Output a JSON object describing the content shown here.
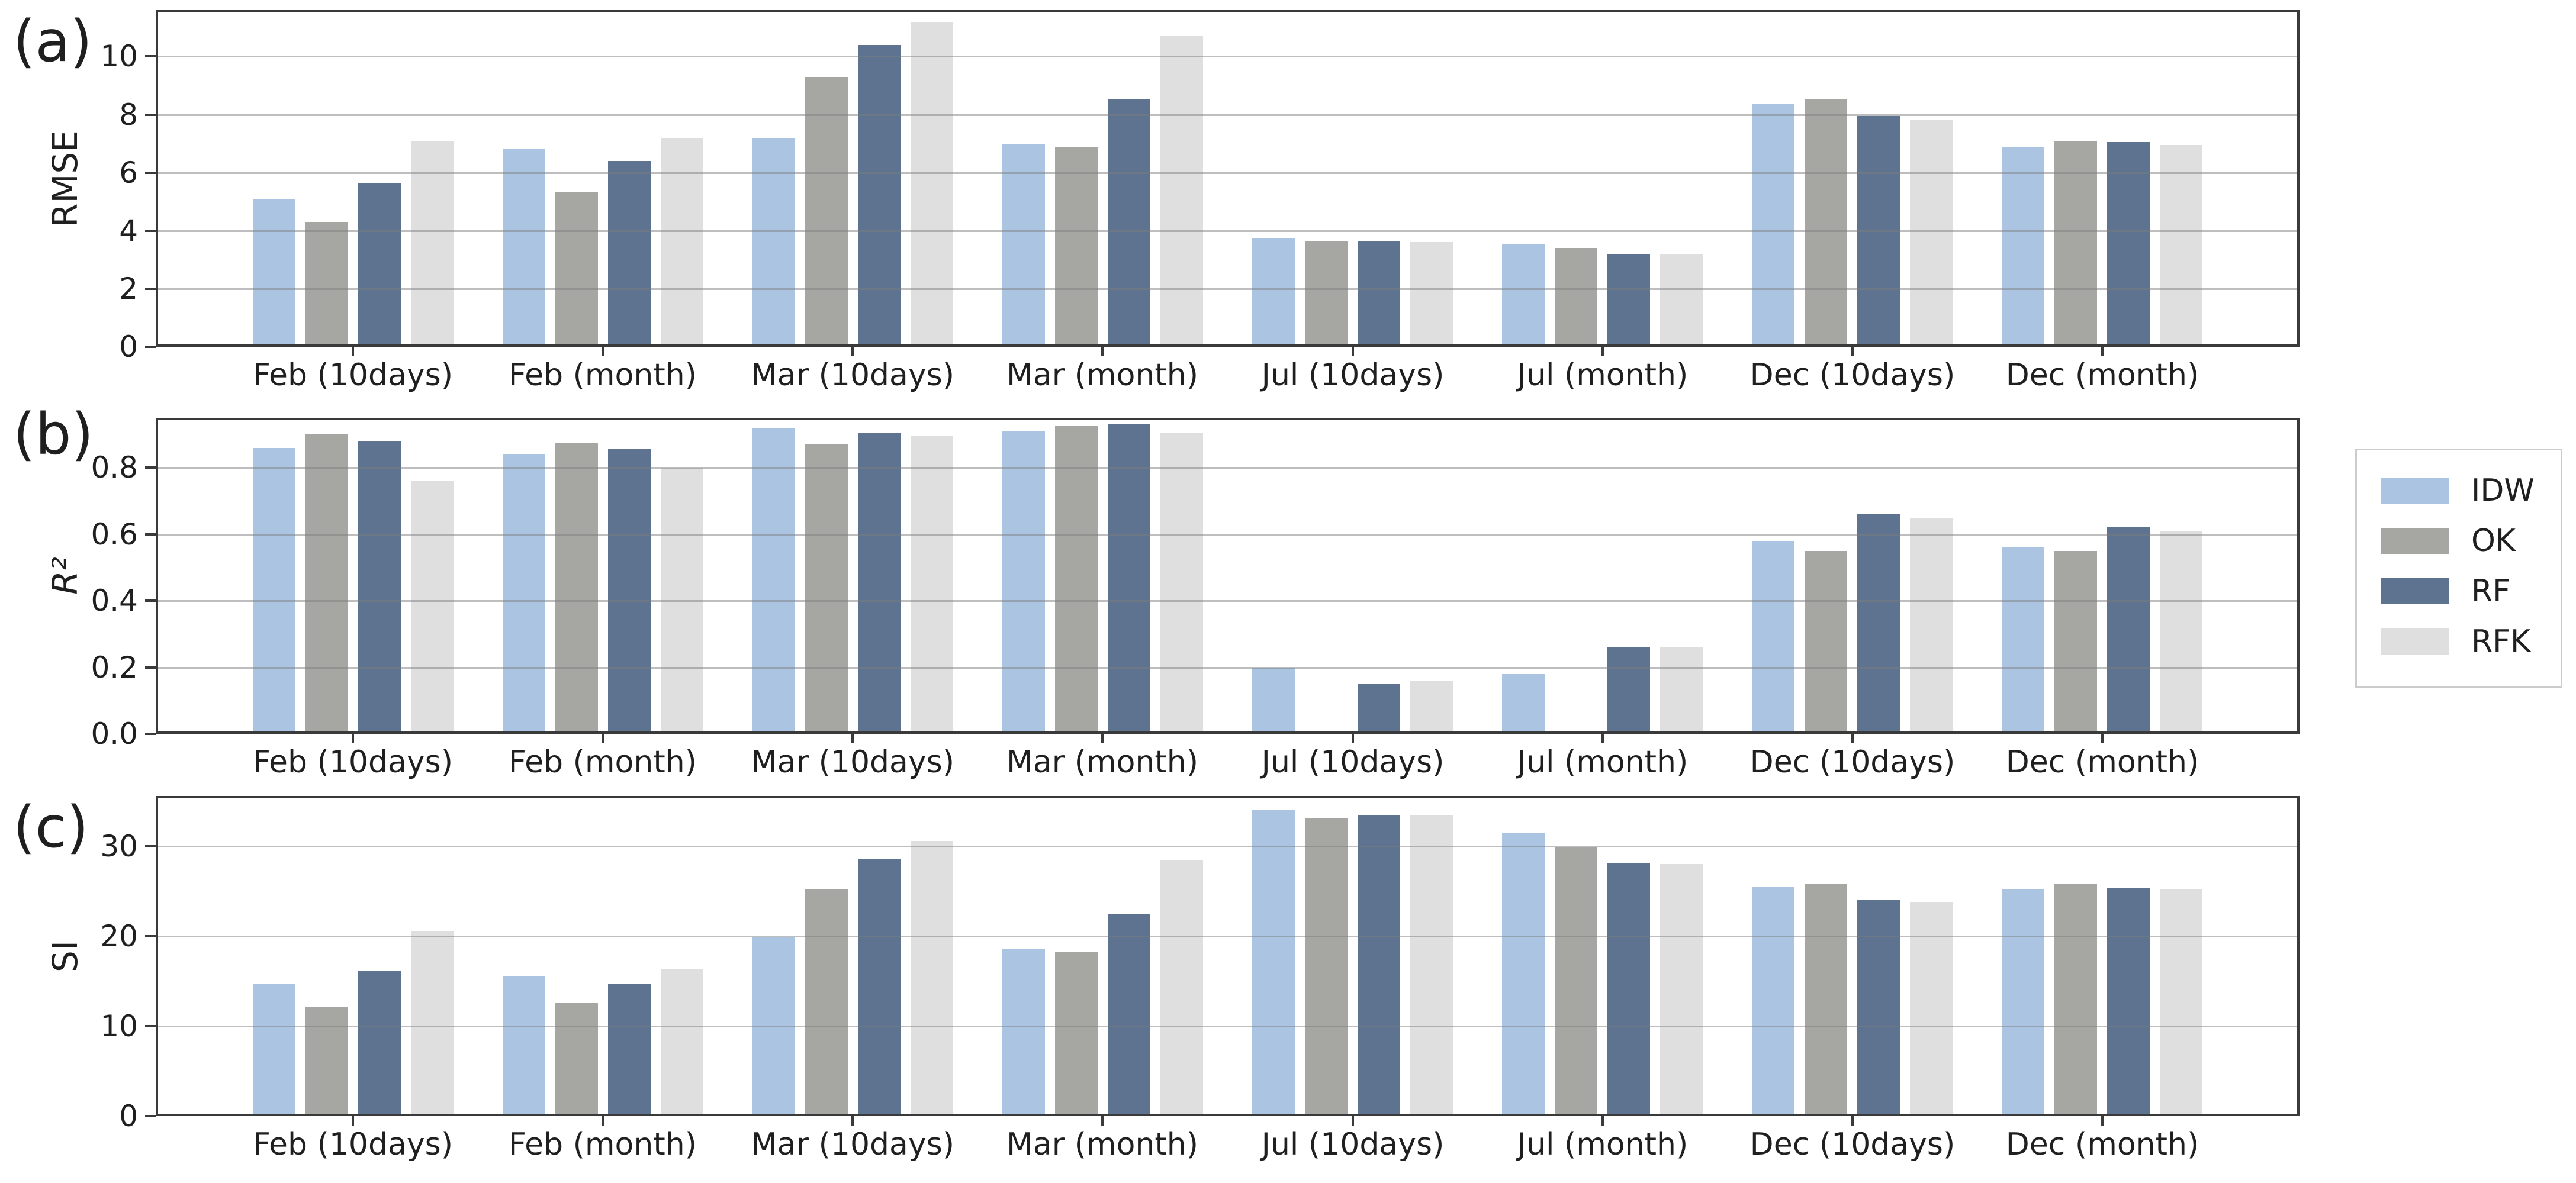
{
  "chart_data": [
    {
      "type": "bar",
      "panel_label": "(a)",
      "ylabel": "RMSE",
      "categories": [
        "Feb (10days)",
        "Feb (month)",
        "Mar (10days)",
        "Mar (month)",
        "Jul (10days)",
        "Jul (month)",
        "Dec (10days)",
        "Dec (month)"
      ],
      "series": [
        {
          "name": "IDW",
          "values": [
            5.1,
            6.8,
            7.2,
            7.0,
            3.75,
            3.55,
            8.35,
            6.9
          ]
        },
        {
          "name": "OK",
          "values": [
            4.3,
            5.35,
            9.3,
            6.9,
            3.65,
            3.4,
            8.55,
            7.1
          ]
        },
        {
          "name": "RF",
          "values": [
            5.65,
            6.4,
            10.4,
            8.55,
            3.65,
            3.2,
            7.95,
            7.05
          ]
        },
        {
          "name": "RFK",
          "values": [
            7.1,
            7.2,
            11.2,
            10.7,
            3.6,
            3.2,
            7.8,
            6.95
          ]
        }
      ],
      "ylim": [
        0,
        11.6
      ],
      "yticks": [
        0,
        2,
        4,
        6,
        8,
        10
      ],
      "ytick_labels": [
        "0",
        "2",
        "4",
        "6",
        "8",
        "10"
      ],
      "grid": true,
      "legend_position": "right"
    },
    {
      "type": "bar",
      "panel_label": "(b)",
      "ylabel": "R²",
      "categories": [
        "Feb (10days)",
        "Feb (month)",
        "Mar (10days)",
        "Mar (month)",
        "Jul (10days)",
        "Jul (month)",
        "Dec (10days)",
        "Dec (month)"
      ],
      "series": [
        {
          "name": "IDW",
          "values": [
            0.86,
            0.84,
            0.92,
            0.91,
            0.2,
            0.18,
            0.58,
            0.56
          ]
        },
        {
          "name": "OK",
          "values": [
            0.9,
            0.875,
            0.87,
            0.925,
            0,
            0,
            0.55,
            0.55
          ]
        },
        {
          "name": "RF",
          "values": [
            0.88,
            0.855,
            0.905,
            0.93,
            0.15,
            0.26,
            0.66,
            0.62
          ]
        },
        {
          "name": "RFK",
          "values": [
            0.76,
            0.8,
            0.895,
            0.905,
            0.16,
            0.26,
            0.65,
            0.61
          ]
        }
      ],
      "ylim": [
        0,
        0.95
      ],
      "yticks": [
        0,
        0.2,
        0.4,
        0.6,
        0.8
      ],
      "ytick_labels": [
        "0.0",
        "0.2",
        "0.4",
        "0.6",
        "0.8"
      ],
      "grid": true,
      "legend_position": "right"
    },
    {
      "type": "bar",
      "panel_label": "(c)",
      "ylabel": "SI",
      "categories": [
        "Feb (10days)",
        "Feb (month)",
        "Mar (10days)",
        "Mar (month)",
        "Jul (10days)",
        "Jul (month)",
        "Dec (10days)",
        "Dec (month)"
      ],
      "series": [
        {
          "name": "IDW",
          "values": [
            14.7,
            15.5,
            19.9,
            18.6,
            34.0,
            31.5,
            25.5,
            25.3
          ]
        },
        {
          "name": "OK",
          "values": [
            12.2,
            12.6,
            25.3,
            18.3,
            33.1,
            29.9,
            25.8,
            25.8
          ]
        },
        {
          "name": "RF",
          "values": [
            16.1,
            14.7,
            28.6,
            22.5,
            33.4,
            28.1,
            24.1,
            25.4
          ]
        },
        {
          "name": "RFK",
          "values": [
            20.6,
            16.4,
            30.6,
            28.4,
            33.4,
            28.0,
            23.8,
            25.3
          ]
        }
      ],
      "ylim": [
        0,
        35.6
      ],
      "yticks": [
        0,
        10,
        20,
        30
      ],
      "ytick_labels": [
        "0",
        "10",
        "20",
        "30"
      ],
      "grid": true,
      "legend_position": "right"
    }
  ],
  "legend": {
    "items": [
      {
        "label": "IDW",
        "color": "#abc4e2"
      },
      {
        "label": "OK",
        "color": "#a6a6a3"
      },
      {
        "label": "RF",
        "color": "#5d7390"
      },
      {
        "label": "RFK",
        "color": "#dfdfdf"
      }
    ]
  },
  "colors": {
    "spine": "#3a3a3a",
    "grid": "#7d7d7d",
    "text": "#1f1f1f",
    "background": "#ffffff"
  }
}
